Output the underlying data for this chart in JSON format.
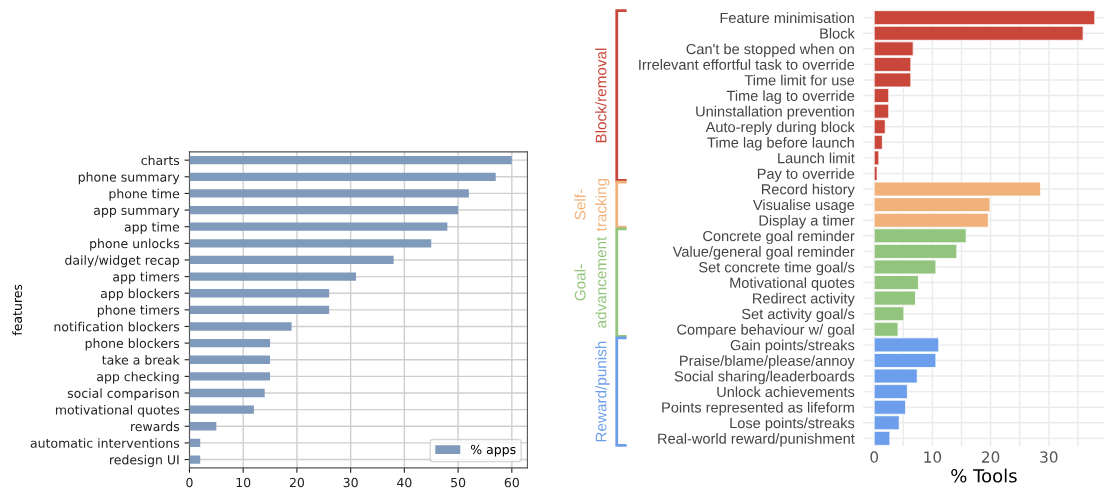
{
  "chart_data": [
    {
      "type": "bar",
      "orientation": "horizontal",
      "ylabel": "features",
      "categories": [
        "charts",
        "phone summary",
        "phone time",
        "app summary",
        "app time",
        "phone unlocks",
        "daily/widget recap",
        "app timers",
        "app blockers",
        "phone timers",
        "notification blockers",
        "phone blockers",
        "take a break",
        "app checking",
        "social comparison",
        "motivational quotes",
        "rewards",
        "automatic interventions",
        "redesign UI"
      ],
      "series": [
        {
          "name": "% apps",
          "color": "#7f9aba",
          "values": [
            60,
            57,
            52,
            50,
            48,
            45,
            38,
            31,
            26,
            26,
            19,
            15,
            15,
            15,
            14,
            12,
            5,
            2,
            2
          ]
        }
      ],
      "xlim": [
        0,
        62.9
      ],
      "xticks": [
        0,
        10,
        20,
        30,
        40,
        50,
        60
      ],
      "grid": true,
      "legend": "bottom right"
    },
    {
      "type": "bar",
      "orientation": "horizontal",
      "xlabel": "% Tools",
      "categories": [
        "Feature minimisation",
        "Block",
        "Can't be stopped when on",
        "Irrelevant effortful task to override",
        "Time limit for use",
        "Time lag to override",
        "Uninstallation prevention",
        "Auto-reply during block",
        "Time lag before launch",
        "Launch limit",
        "Pay to override",
        "Record history",
        "Visualise usage",
        "Display a timer",
        "Concrete goal reminder",
        "Value/general goal reminder",
        "Set concrete time goal/s",
        "Motivational quotes",
        "Redirect activity",
        "Set activity goal/s",
        "Compare behaviour w/ goal",
        "Gain points/streaks",
        "Praise/blame/please/annoy",
        "Social sharing/leaderboards",
        "Unlock achievements",
        "Points represented as lifeform",
        "Lose points/streaks",
        "Real-world reward/punishment"
      ],
      "series": [
        {
          "name": "Block/removal",
          "color": "#c8473a",
          "values": [
            37.9,
            35.9,
            6.7,
            6.3,
            6.3,
            2.5,
            2.5,
            1.9,
            1.4,
            0.8,
            0.5,
            null,
            null,
            null,
            null,
            null,
            null,
            null,
            null,
            null,
            null,
            null,
            null,
            null,
            null,
            null,
            null,
            null
          ]
        },
        {
          "name": "Self-\ntracking",
          "color": "#f0b27a",
          "values": [
            null,
            null,
            null,
            null,
            null,
            null,
            null,
            null,
            null,
            null,
            null,
            28.6,
            19.9,
            19.6,
            null,
            null,
            null,
            null,
            null,
            null,
            null,
            null,
            null,
            null,
            null,
            null,
            null,
            null
          ]
        },
        {
          "name": "Goal-\nadvancement",
          "color": "#93c47d",
          "values": [
            null,
            null,
            null,
            null,
            null,
            null,
            null,
            null,
            null,
            null,
            null,
            null,
            null,
            null,
            15.8,
            14.2,
            10.6,
            7.6,
            7.1,
            5.1,
            4.1,
            null,
            null,
            null,
            null,
            null,
            null,
            null
          ]
        },
        {
          "name": "Reward/punish",
          "color": "#6d9eeb",
          "values": [
            null,
            null,
            null,
            null,
            null,
            null,
            null,
            null,
            null,
            null,
            null,
            null,
            null,
            null,
            null,
            null,
            null,
            null,
            null,
            null,
            null,
            11.1,
            10.6,
            7.4,
            5.7,
            5.4,
            4.3,
            2.7
          ]
        }
      ],
      "xlim": [
        -1.9,
        39.6
      ],
      "xticks": [
        0,
        {
          "value": 5,
          "label": null
        },
        10,
        {
          "value": 15,
          "label": null
        },
        20,
        {
          "value": 25,
          "label": null
        },
        30,
        {
          "value": 35,
          "label": null
        }
      ],
      "grid": true,
      "legend": false
    }
  ]
}
